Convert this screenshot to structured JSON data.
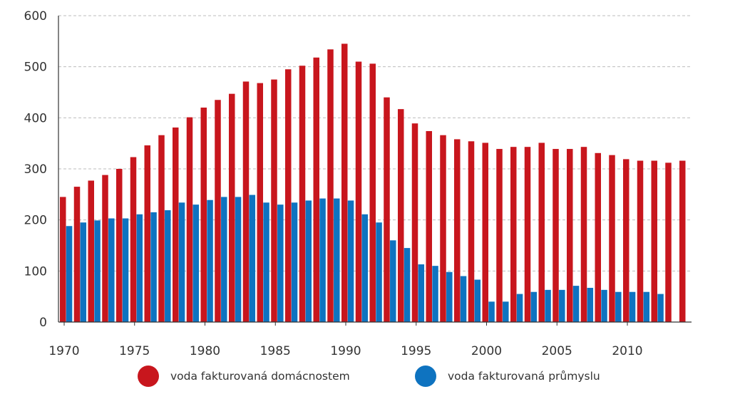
{
  "chart_data": {
    "type": "bar",
    "x": [
      1970,
      1971,
      1972,
      1973,
      1974,
      1975,
      1976,
      1977,
      1978,
      1979,
      1980,
      1981,
      1982,
      1983,
      1984,
      1985,
      1986,
      1987,
      1988,
      1989,
      1990,
      1991,
      1992,
      1993,
      1994,
      1995,
      1996,
      1997,
      1998,
      1999,
      2000,
      2001,
      2002,
      2003,
      2004,
      2005,
      2006,
      2007,
      2008,
      2009,
      2010,
      2011,
      2012,
      2013,
      2014
    ],
    "series": [
      {
        "name": "voda fakturovaná domácnostem",
        "color": "#c8161d",
        "values": [
          245,
          265,
          277,
          288,
          300,
          323,
          346,
          366,
          381,
          401,
          420,
          435,
          447,
          471,
          468,
          475,
          495,
          502,
          518,
          534,
          545,
          510,
          506,
          440,
          417,
          389,
          374,
          366,
          358,
          354,
          351,
          339,
          343,
          343,
          351,
          339,
          339,
          343,
          331,
          327,
          319,
          316,
          316,
          312,
          316
        ]
      },
      {
        "name": "voda fakturovaná průmyslu",
        "color": "#0e73c0",
        "values": [
          188,
          195,
          199,
          203,
          203,
          211,
          215,
          219,
          234,
          230,
          239,
          245,
          245,
          249,
          234,
          230,
          234,
          238,
          242,
          242,
          238,
          211,
          195,
          160,
          145,
          113,
          110,
          98,
          90,
          83,
          40,
          40,
          55,
          59,
          63,
          63,
          71,
          67,
          63,
          59,
          59,
          59,
          55,
          null,
          null
        ]
      }
    ],
    "x_ticks": [
      1970,
      1975,
      1980,
      1985,
      1990,
      1995,
      2000,
      2005,
      2010
    ],
    "y_ticks": [
      0,
      100,
      200,
      300,
      400,
      500,
      600
    ],
    "ylim": [
      0,
      600
    ],
    "grid": "horizontal dashed",
    "legend_position": "bottom",
    "title": "",
    "xlabel": "",
    "ylabel": ""
  }
}
